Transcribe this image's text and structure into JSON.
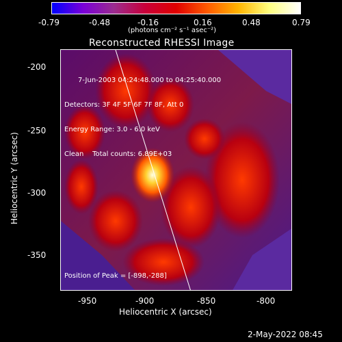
{
  "colorbar": {
    "ticks": [
      "-0.79",
      "-0.48",
      "-0.16",
      "0.16",
      "0.48",
      "0.79"
    ],
    "units_label": "(photons cm⁻² s⁻¹ asec⁻²)",
    "gradient": [
      "#0000ff",
      "#7a00d8",
      "#9b2c8f",
      "#c8003a",
      "#e00000",
      "#ff5a00",
      "#ffb400",
      "#ffff80",
      "#ffffff"
    ]
  },
  "plot": {
    "title": "Reconstructed RHESSI Image",
    "info_lines": [
      "7-Jun-2003 04:24:48.000 to 04:25:40.000",
      "Detectors: 3F 4F 5F 6F 7F 8F, Att 0",
      "Energy Range: 3.0 - 6.0 keV",
      "Clean    Total counts: 6.89E+03"
    ],
    "peak_label": "Position of Peak = [-898,-288]",
    "xlabel": "Heliocentric X (arcsec)",
    "ylabel": "Heliocentric Y (arcsec)",
    "x_ticks": [
      "-950",
      "-900",
      "-850",
      "-800"
    ],
    "y_ticks": [
      "-200",
      "-250",
      "-300",
      "-350"
    ]
  },
  "footer": {
    "timestamp": "2-May-2022 08:45"
  }
}
